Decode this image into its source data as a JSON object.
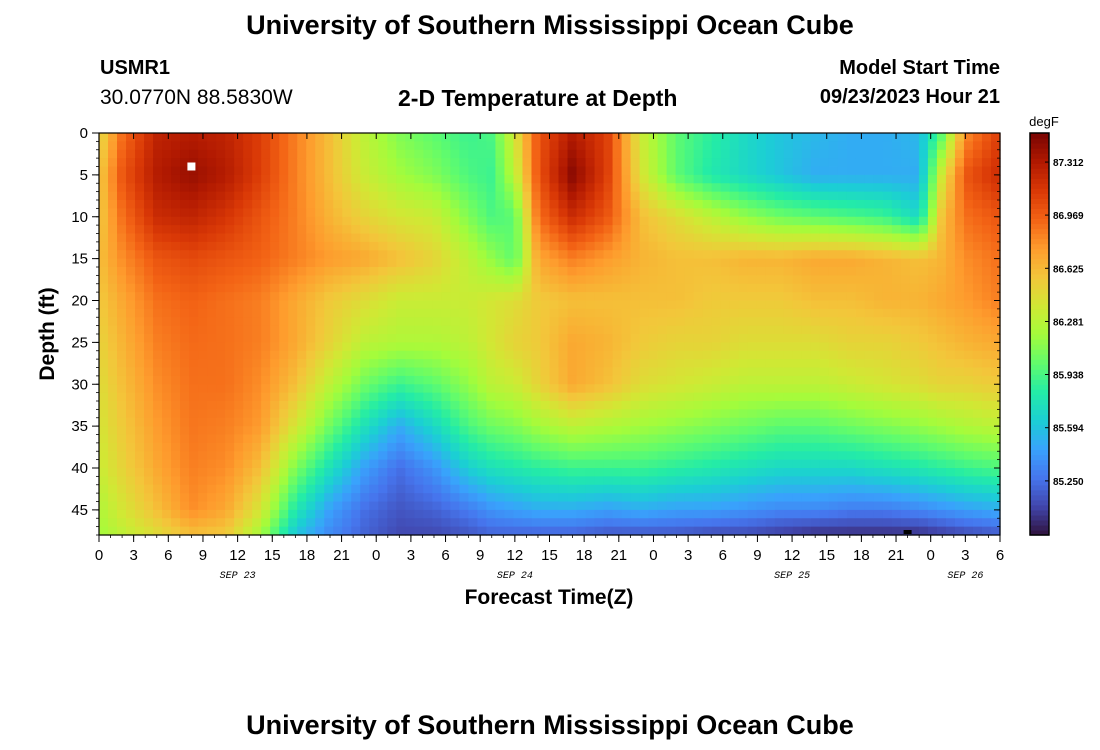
{
  "page": {
    "title_top": "University of Southern Mississippi Ocean Cube",
    "title_bottom": "University of Southern Mississippi Ocean Cube",
    "station_id": "USMR1",
    "station_coords": "30.0770N  88.5830W",
    "model_label": "Model Start Time",
    "model_date": "09/23/2023 Hour 21"
  },
  "chart_data": {
    "type": "heatmap",
    "title": "2-D Temperature at Depth",
    "xlabel": "Forecast Time(Z)",
    "ylabel": "Depth (ft)",
    "colorbar_label": "degF",
    "x_range_hours": [
      0,
      78
    ],
    "x_tick_labels": [
      "0",
      "3",
      "6",
      "9",
      "12",
      "15",
      "18",
      "21",
      "0",
      "3",
      "6",
      "9",
      "12",
      "15",
      "18",
      "21",
      "0",
      "3",
      "6",
      "9",
      "12",
      "15",
      "18",
      "21",
      "0",
      "3",
      "6"
    ],
    "day_labels": [
      {
        "label": "SEP 23",
        "hour": 12
      },
      {
        "label": "SEP 24",
        "hour": 36
      },
      {
        "label": "SEP 25",
        "hour": 60
      },
      {
        "label": "SEP 26",
        "hour": 75
      }
    ],
    "y_range_ft": [
      0,
      48
    ],
    "y_ticks": [
      0,
      5,
      10,
      15,
      20,
      25,
      30,
      35,
      40,
      45
    ],
    "color_range": [
      84.9,
      87.5
    ],
    "colorbar_ticks": [
      "87.312",
      "86.969",
      "86.625",
      "86.281",
      "85.938",
      "85.594",
      "85.250"
    ],
    "colormap": [
      "#30123b",
      "#4145ab",
      "#4675ed",
      "#39a2fc",
      "#1bcfd4",
      "#24eca6",
      "#61fc6c",
      "#a4fc3b",
      "#d1e834",
      "#f3c63a",
      "#fe9b2d",
      "#f36315",
      "#d93806",
      "#b11901",
      "#7a0402"
    ],
    "profiles": [
      {
        "hour": 0,
        "depth": [
          0,
          5,
          10,
          15,
          20,
          25,
          30,
          35,
          40,
          45,
          48
        ],
        "temp": [
          86.45,
          86.55,
          86.55,
          86.6,
          86.55,
          86.5,
          86.45,
          86.4,
          86.35,
          86.25,
          86.2
        ]
      },
      {
        "hour": 2,
        "depth": [
          0,
          5,
          10,
          15,
          20,
          25,
          30,
          35,
          40,
          45,
          48
        ],
        "temp": [
          86.9,
          87.0,
          86.9,
          86.8,
          86.7,
          86.65,
          86.6,
          86.55,
          86.5,
          86.4,
          86.3
        ]
      },
      {
        "hour": 5,
        "depth": [
          0,
          5,
          10,
          15,
          20,
          25,
          30,
          35,
          40,
          45,
          48
        ],
        "temp": [
          87.25,
          87.3,
          87.2,
          87.0,
          86.9,
          86.85,
          86.8,
          86.75,
          86.7,
          86.6,
          86.45
        ]
      },
      {
        "hour": 8,
        "depth": [
          0,
          5,
          10,
          15,
          20,
          25,
          30,
          35,
          40,
          45,
          48
        ],
        "temp": [
          87.3,
          87.4,
          87.25,
          87.05,
          86.95,
          86.92,
          86.9,
          86.88,
          86.85,
          86.8,
          86.6
        ]
      },
      {
        "hour": 11,
        "depth": [
          0,
          5,
          10,
          15,
          20,
          25,
          30,
          35,
          40,
          45,
          48
        ],
        "temp": [
          87.25,
          87.3,
          87.15,
          87.0,
          86.9,
          86.9,
          86.9,
          86.85,
          86.8,
          86.7,
          86.55
        ]
      },
      {
        "hour": 14,
        "depth": [
          0,
          5,
          10,
          15,
          20,
          25,
          30,
          35,
          40,
          45,
          48
        ],
        "temp": [
          87.1,
          87.1,
          87.0,
          86.95,
          86.85,
          86.85,
          86.8,
          86.75,
          86.6,
          86.4,
          86.2
        ]
      },
      {
        "hour": 17,
        "depth": [
          0,
          5,
          10,
          15,
          20,
          25,
          30,
          35,
          40,
          45,
          48
        ],
        "temp": [
          86.85,
          86.85,
          86.85,
          86.85,
          86.7,
          86.7,
          86.6,
          86.4,
          86.1,
          85.8,
          85.6
        ]
      },
      {
        "hour": 20,
        "depth": [
          0,
          5,
          10,
          15,
          20,
          25,
          30,
          35,
          40,
          45,
          48
        ],
        "temp": [
          86.6,
          86.6,
          86.65,
          86.75,
          86.55,
          86.5,
          86.3,
          86.05,
          85.75,
          85.45,
          85.35
        ]
      },
      {
        "hour": 23,
        "depth": [
          0,
          5,
          10,
          15,
          20,
          25,
          30,
          35,
          40,
          45,
          48
        ],
        "temp": [
          86.3,
          86.35,
          86.5,
          86.7,
          86.45,
          86.3,
          86.05,
          85.75,
          85.45,
          85.25,
          85.2
        ]
      },
      {
        "hour": 26,
        "depth": [
          0,
          5,
          10,
          15,
          20,
          25,
          30,
          35,
          40,
          45,
          48
        ],
        "temp": [
          86.1,
          86.2,
          86.4,
          86.6,
          86.35,
          86.25,
          85.9,
          85.5,
          85.25,
          85.15,
          85.1
        ]
      },
      {
        "hour": 29,
        "depth": [
          0,
          5,
          10,
          15,
          20,
          25,
          30,
          35,
          40,
          45,
          48
        ],
        "temp": [
          86.0,
          86.1,
          86.35,
          86.5,
          86.35,
          86.25,
          86.0,
          85.7,
          85.4,
          85.2,
          85.1
        ]
      },
      {
        "hour": 32,
        "depth": [
          0,
          5,
          10,
          15,
          20,
          25,
          30,
          35,
          40,
          45,
          48
        ],
        "temp": [
          85.9,
          85.95,
          86.1,
          86.3,
          86.35,
          86.3,
          86.15,
          85.95,
          85.65,
          85.3,
          85.15
        ]
      },
      {
        "hour": 34,
        "depth": [
          0,
          5,
          10,
          15,
          20,
          25,
          30,
          35,
          40,
          45,
          48
        ],
        "temp": [
          85.95,
          85.9,
          85.95,
          86.15,
          86.4,
          86.4,
          86.3,
          86.05,
          85.75,
          85.4,
          85.2
        ]
      },
      {
        "hour": 36,
        "depth": [
          0,
          5,
          10,
          15,
          20,
          25,
          30,
          35,
          40,
          45,
          48
        ],
        "temp": [
          86.4,
          86.3,
          86.0,
          86.0,
          86.45,
          86.5,
          86.35,
          86.1,
          85.8,
          85.45,
          85.2
        ]
      },
      {
        "hour": 38,
        "depth": [
          0,
          5,
          10,
          15,
          20,
          25,
          30,
          35,
          40,
          45,
          48
        ],
        "temp": [
          87.0,
          87.0,
          86.9,
          86.7,
          86.55,
          86.55,
          86.5,
          86.2,
          85.85,
          85.5,
          85.2
        ]
      },
      {
        "hour": 41,
        "depth": [
          0,
          5,
          10,
          15,
          20,
          25,
          30,
          35,
          40,
          45,
          48
        ],
        "temp": [
          87.3,
          87.45,
          87.2,
          86.85,
          86.6,
          86.7,
          86.7,
          86.3,
          85.9,
          85.5,
          85.2
        ]
      },
      {
        "hour": 44,
        "depth": [
          0,
          5,
          10,
          15,
          20,
          25,
          30,
          35,
          40,
          45,
          48
        ],
        "temp": [
          87.1,
          87.1,
          87.0,
          86.75,
          86.6,
          86.65,
          86.6,
          86.25,
          85.9,
          85.45,
          85.15
        ]
      },
      {
        "hour": 47,
        "depth": [
          0,
          5,
          10,
          15,
          20,
          25,
          30,
          35,
          40,
          45,
          48
        ],
        "temp": [
          86.35,
          86.4,
          86.6,
          86.65,
          86.6,
          86.55,
          86.45,
          86.2,
          85.9,
          85.5,
          85.15
        ]
      },
      {
        "hour": 50,
        "depth": [
          0,
          5,
          10,
          15,
          20,
          25,
          30,
          35,
          40,
          45,
          48
        ],
        "temp": [
          86.0,
          86.0,
          86.45,
          86.6,
          86.6,
          86.5,
          86.4,
          86.15,
          85.85,
          85.45,
          85.15
        ]
      },
      {
        "hour": 53,
        "depth": [
          0,
          5,
          10,
          15,
          20,
          25,
          30,
          35,
          40,
          45,
          48
        ],
        "temp": [
          85.85,
          85.8,
          86.3,
          86.6,
          86.55,
          86.5,
          86.35,
          86.1,
          85.8,
          85.45,
          85.1
        ]
      },
      {
        "hour": 56,
        "depth": [
          0,
          5,
          10,
          15,
          20,
          25,
          30,
          35,
          40,
          45,
          48
        ],
        "temp": [
          85.7,
          85.7,
          86.15,
          86.65,
          86.55,
          86.45,
          86.3,
          86.05,
          85.75,
          85.4,
          85.1
        ]
      },
      {
        "hour": 59,
        "depth": [
          0,
          5,
          10,
          15,
          20,
          25,
          30,
          35,
          40,
          45,
          48
        ],
        "temp": [
          85.6,
          85.6,
          86.05,
          86.65,
          86.55,
          86.45,
          86.3,
          86.0,
          85.7,
          85.35,
          85.05
        ]
      },
      {
        "hour": 62,
        "depth": [
          0,
          5,
          10,
          15,
          20,
          25,
          30,
          35,
          40,
          45,
          48
        ],
        "temp": [
          85.55,
          85.5,
          86.0,
          86.7,
          86.6,
          86.45,
          86.3,
          86.0,
          85.7,
          85.35,
          85.0
        ]
      },
      {
        "hour": 65,
        "depth": [
          0,
          5,
          10,
          15,
          20,
          25,
          30,
          35,
          40,
          45,
          48
        ],
        "temp": [
          85.5,
          85.5,
          85.95,
          86.7,
          86.6,
          86.5,
          86.35,
          86.05,
          85.7,
          85.3,
          85.0
        ]
      },
      {
        "hour": 68,
        "depth": [
          0,
          5,
          10,
          15,
          20,
          25,
          30,
          35,
          40,
          45,
          48
        ],
        "temp": [
          85.5,
          85.5,
          85.9,
          86.65,
          86.65,
          86.5,
          86.4,
          86.1,
          85.75,
          85.3,
          85.0
        ]
      },
      {
        "hour": 71,
        "depth": [
          0,
          5,
          10,
          15,
          20,
          25,
          30,
          35,
          40,
          45,
          48
        ],
        "temp": [
          85.55,
          85.5,
          85.7,
          86.6,
          86.65,
          86.55,
          86.45,
          86.15,
          85.8,
          85.35,
          85.0
        ]
      },
      {
        "hour": 73,
        "depth": [
          0,
          5,
          10,
          15,
          20,
          25,
          30,
          35,
          40,
          45,
          48
        ],
        "temp": [
          86.0,
          86.4,
          86.6,
          86.65,
          86.7,
          86.6,
          86.5,
          86.2,
          85.85,
          85.4,
          85.05
        ]
      },
      {
        "hour": 75,
        "depth": [
          0,
          5,
          10,
          15,
          20,
          25,
          30,
          35,
          40,
          45,
          48
        ],
        "temp": [
          86.8,
          87.0,
          86.9,
          86.8,
          86.75,
          86.65,
          86.5,
          86.25,
          85.9,
          85.45,
          85.1
        ]
      },
      {
        "hour": 78,
        "depth": [
          0,
          5,
          10,
          15,
          20,
          25,
          30,
          35,
          40,
          45,
          48
        ],
        "temp": [
          87.1,
          87.2,
          87.0,
          86.9,
          86.85,
          86.7,
          86.55,
          86.3,
          85.95,
          85.5,
          85.15
        ]
      }
    ],
    "markers": [
      {
        "name": "max-marker",
        "hour": 8,
        "depth": 4,
        "color": "#ffffff"
      },
      {
        "name": "min-marker",
        "hour": 70,
        "depth": 48,
        "color": "#000000"
      }
    ]
  }
}
